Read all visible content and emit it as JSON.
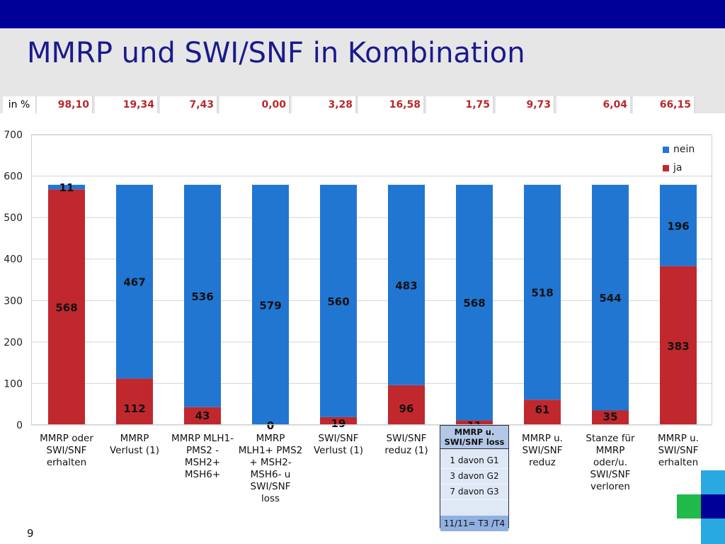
{
  "title": "MMRP und SWI/SNF in Kombination",
  "percent_row": {
    "label": "in %",
    "values": [
      "98,10",
      "19,34",
      "7,43",
      "0,00",
      "3,28",
      "16,58",
      "1,75",
      "9,73",
      "6,04",
      "66,15"
    ]
  },
  "chart_data": {
    "type": "bar",
    "stacked": true,
    "categories": [
      [
        "MMRP oder",
        "SWI/SNF",
        "erhalten"
      ],
      [
        "MMRP",
        "Verlust (1)"
      ],
      [
        "MMRP MLH1-",
        "PMS2 -",
        "MSH2+",
        "MSH6+"
      ],
      [
        "MMRP",
        "MLH1+ PMS2",
        "+ MSH2-",
        "MSH6- u",
        "SWI/SNF",
        "loss"
      ],
      [
        "SWI/SNF",
        "Verlust (1)"
      ],
      [
        "SWI/SNF",
        "reduz (1)"
      ],
      [],
      [
        "MMRP u.",
        "SWI/SNF",
        "reduz"
      ],
      [
        "Stanze für",
        "MMRP",
        "oder/u.",
        "SWI/SNF",
        "verloren"
      ],
      [
        "MMRP u.",
        "SWI/SNF",
        "erhalten"
      ]
    ],
    "series": [
      {
        "name": "ja",
        "color": "#c0282d",
        "values": [
          568,
          112,
          43,
          0,
          19,
          96,
          11,
          61,
          35,
          383
        ]
      },
      {
        "name": "nein",
        "color": "#2176d2",
        "values": [
          11,
          467,
          536,
          579,
          560,
          483,
          568,
          518,
          544,
          196
        ]
      }
    ],
    "ylim": [
      0,
      700
    ],
    "yticks": [
      0,
      100,
      200,
      300,
      400,
      500,
      600,
      700
    ],
    "grid": true,
    "legend": "top-right"
  },
  "info_box": {
    "header": [
      "MMRP u.",
      "SWI/SNF loss"
    ],
    "lines": [
      "1 davon G1",
      "3 davon G2",
      "7 davon G3"
    ],
    "footer": "11/11= T3 /T4"
  },
  "page_number": "9",
  "colors": {
    "top_bar": "#000099",
    "title_text": "#1a1a8c",
    "header_band": "#e6e6e6",
    "percent_text": "#b8282b"
  }
}
